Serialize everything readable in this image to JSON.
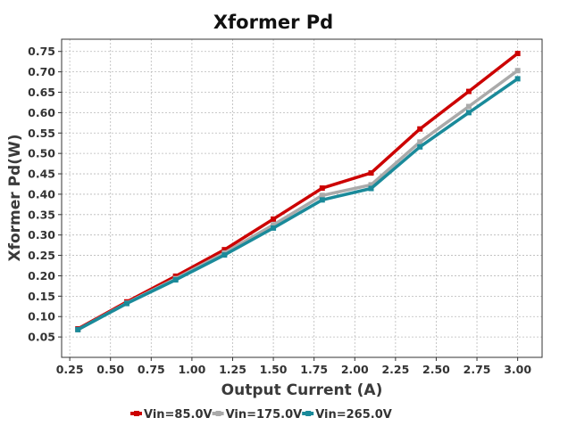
{
  "chart_data": {
    "type": "line",
    "title": "Xformer Pd",
    "xlabel": "Output Current (A)",
    "ylabel": "Xformer Pd(W)",
    "x": [
      0.3,
      0.6,
      0.9,
      1.2,
      1.5,
      1.8,
      2.1,
      2.4,
      2.7,
      3.0
    ],
    "xlim": [
      0.2,
      3.15
    ],
    "ylim": [
      0.0,
      0.78
    ],
    "xticks": [
      "0.25",
      "0.50",
      "0.75",
      "1.00",
      "1.25",
      "1.50",
      "1.75",
      "2.00",
      "2.25",
      "2.50",
      "2.75",
      "3.00"
    ],
    "yticks": [
      "0.05",
      "0.10",
      "0.15",
      "0.20",
      "0.25",
      "0.30",
      "0.35",
      "0.40",
      "0.45",
      "0.50",
      "0.55",
      "0.60",
      "0.65",
      "0.70",
      "0.75"
    ],
    "grid": true,
    "legend_position": "bottom",
    "series": [
      {
        "name": "Vin=85.0V",
        "color": "#cc0000",
        "values": [
          0.07,
          0.136,
          0.199,
          0.264,
          0.339,
          0.415,
          0.452,
          0.56,
          0.652,
          0.745
        ]
      },
      {
        "name": "Vin=175.0V",
        "color": "#aaaaaa",
        "values": [
          0.068,
          0.133,
          0.193,
          0.256,
          0.325,
          0.397,
          0.423,
          0.528,
          0.615,
          0.703
        ]
      },
      {
        "name": "Vin=265.0V",
        "color": "#1a8a9a",
        "values": [
          0.068,
          0.132,
          0.19,
          0.251,
          0.317,
          0.386,
          0.414,
          0.516,
          0.6,
          0.683
        ]
      }
    ]
  }
}
